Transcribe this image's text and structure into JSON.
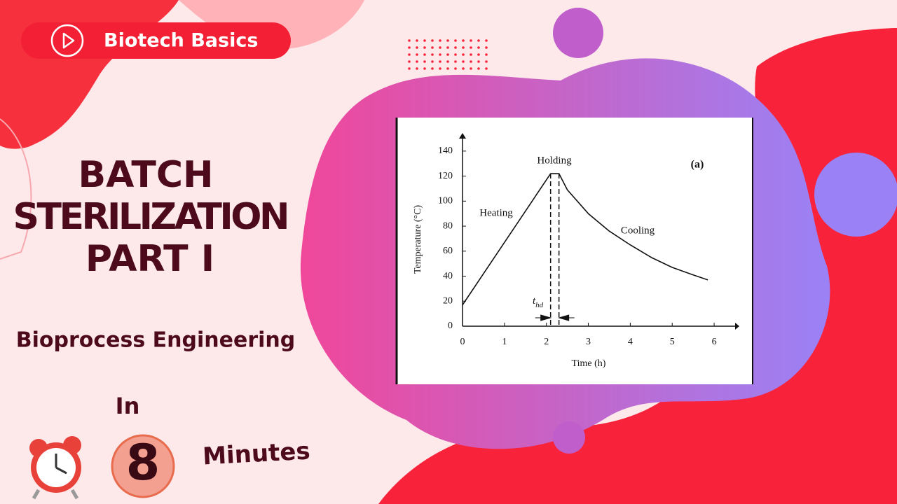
{
  "badge": "Biotech Basics",
  "title_lines": [
    "BATCH",
    "STERILIZATION",
    "PART I"
  ],
  "subtitle": "Bioprocess Engineering",
  "in_text": "In",
  "number": "8",
  "minutes_text": "Minutes",
  "chart_data": {
    "type": "line",
    "panel_label": "(a)",
    "x_label": "Time (h)",
    "y_label": "Temperature (°C)",
    "annotations": {
      "heating": "Heating",
      "holding": "Holding",
      "cooling": "Cooling",
      "t_main": "t",
      "t_sub": "hd"
    },
    "x": [
      0,
      2.1,
      2.3,
      2.5,
      3,
      3.5,
      4,
      4.5,
      5,
      5.5,
      5.85
    ],
    "values": [
      17,
      122,
      122,
      109,
      90,
      76,
      65,
      55,
      47,
      41,
      37
    ],
    "color": "#111111",
    "holding_start": 2.1,
    "holding_end": 2.3,
    "xlim": [
      0,
      6.5
    ],
    "ylim": [
      0,
      150
    ],
    "xticks": [
      0,
      1,
      2,
      3,
      4,
      5,
      6
    ],
    "yticks": [
      0,
      20,
      40,
      60,
      80,
      100,
      120,
      140
    ]
  }
}
